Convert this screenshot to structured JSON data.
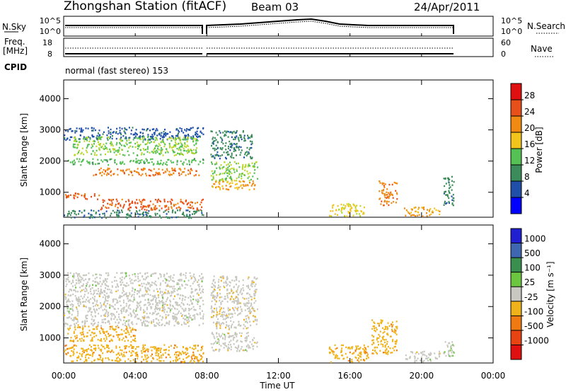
{
  "header": {
    "station": "Zhongshan Station (fitACF)",
    "beam": "Beam 03",
    "date": "24/Apr/2011"
  },
  "top_panel": {
    "left_label": "N.Sky",
    "left_ticks": [
      "10^5",
      "10^0"
    ],
    "right_ticks": [
      "10^5",
      "10^0"
    ],
    "right_label": "N.Search"
  },
  "freq_panel": {
    "left_label_1": "Freq.",
    "left_label_2": "[MHz]",
    "left_ticks": [
      "18",
      "8"
    ],
    "right_ticks": [
      "60",
      "0"
    ],
    "right_label": "Nave"
  },
  "cpid": {
    "label": "CPID",
    "mode": "normal (fast stereo) 153"
  },
  "x_axis": {
    "label": "Time UT",
    "ticks": [
      "00:00",
      "04:00",
      "08:00",
      "12:00",
      "16:00",
      "20:00",
      "00:00"
    ]
  },
  "colors": {
    "power_scale": [
      "#0000ff",
      "#1f4fa8",
      "#3b8c5a",
      "#55c054",
      "#b8d92a",
      "#f2c41c",
      "#f08a12",
      "#e8501a",
      "#e01010"
    ],
    "velocity_scale": [
      "#2020d0",
      "#3f66b0",
      "#3a8e4e",
      "#6cc640",
      "#c8c8c0",
      "#f0b21a",
      "#f07a12",
      "#e84412",
      "#e01010"
    ]
  },
  "chart_data": [
    {
      "type": "heatmap",
      "title": "Power",
      "ylabel": "Slant Range [km]",
      "xlabel": "",
      "y_ticks": [
        "1000",
        "2000",
        "3000",
        "4000"
      ],
      "ylim": [
        200,
        4600
      ],
      "xlim_hours": [
        0,
        24
      ],
      "colorbar_label": "Power [dB]",
      "colorbar_ticks": [
        "28",
        "24",
        "20",
        "16",
        "12",
        "8",
        "4"
      ],
      "colorbar_range": [
        0,
        32
      ],
      "data_gap_hours": [
        7.85,
        8.15
      ],
      "regions": [
        {
          "t": [
            0.0,
            7.8
          ],
          "r": [
            2700,
            3100
          ],
          "v": 6
        },
        {
          "t": [
            0.5,
            7.5
          ],
          "r": [
            2200,
            2800
          ],
          "v": 14
        },
        {
          "t": [
            1.5,
            7.6
          ],
          "r": [
            1550,
            1800
          ],
          "v": 24
        },
        {
          "t": [
            0.2,
            7.8
          ],
          "r": [
            1900,
            2100
          ],
          "v": 12
        },
        {
          "t": [
            0.0,
            2.0
          ],
          "r": [
            800,
            1000
          ],
          "v": 26
        },
        {
          "t": [
            2.0,
            7.8
          ],
          "r": [
            450,
            800
          ],
          "v": 26
        },
        {
          "t": [
            0.0,
            7.8
          ],
          "r": [
            200,
            450
          ],
          "v": 8
        },
        {
          "t": [
            8.2,
            10.8
          ],
          "r": [
            1100,
            1400
          ],
          "v": 22
        },
        {
          "t": [
            8.2,
            10.8
          ],
          "r": [
            1400,
            2000
          ],
          "v": 14
        },
        {
          "t": [
            8.2,
            10.5
          ],
          "r": [
            2100,
            3000
          ],
          "v": 8
        },
        {
          "t": [
            14.8,
            16.8
          ],
          "r": [
            250,
            650
          ],
          "v": 18
        },
        {
          "t": [
            17.6,
            18.6
          ],
          "r": [
            600,
            1400
          ],
          "v": 24
        },
        {
          "t": [
            19.0,
            21.0
          ],
          "r": [
            250,
            550
          ],
          "v": 22
        },
        {
          "t": [
            21.2,
            21.8
          ],
          "r": [
            600,
            1600
          ],
          "v": 8
        }
      ]
    },
    {
      "type": "heatmap",
      "title": "Velocity",
      "ylabel": "Slant Range [km]",
      "xlabel": "Time UT",
      "y_ticks": [
        "1000",
        "2000",
        "3000",
        "4000"
      ],
      "ylim": [
        200,
        4600
      ],
      "xlim_hours": [
        0,
        24
      ],
      "colorbar_label": "Velocity [m s⁻¹]",
      "colorbar_ticks": [
        "1000",
        "500",
        "100",
        "25",
        "-25",
        "-100",
        "-500",
        "-1000"
      ],
      "colorbar_range": [
        -1200,
        1200
      ],
      "data_gap_hours": [
        7.85,
        8.15
      ],
      "regions": [
        {
          "t": [
            0.0,
            7.8
          ],
          "r": [
            1400,
            3100
          ],
          "v": 0
        },
        {
          "t": [
            0.2,
            4.0
          ],
          "r": [
            900,
            1400
          ],
          "v": -300
        },
        {
          "t": [
            0.0,
            7.8
          ],
          "r": [
            250,
            800
          ],
          "v": -300
        },
        {
          "t": [
            8.2,
            10.8
          ],
          "r": [
            1300,
            3000
          ],
          "v": -40
        },
        {
          "t": [
            8.2,
            10.8
          ],
          "r": [
            600,
            1200
          ],
          "v": 0
        },
        {
          "t": [
            14.8,
            17.0
          ],
          "r": [
            250,
            800
          ],
          "v": -300
        },
        {
          "t": [
            17.2,
            18.6
          ],
          "r": [
            500,
            1600
          ],
          "v": -300
        },
        {
          "t": [
            19.0,
            21.0
          ],
          "r": [
            250,
            600
          ],
          "v": 0
        },
        {
          "t": [
            21.2,
            21.8
          ],
          "r": [
            300,
            900
          ],
          "v": 80
        }
      ]
    }
  ]
}
